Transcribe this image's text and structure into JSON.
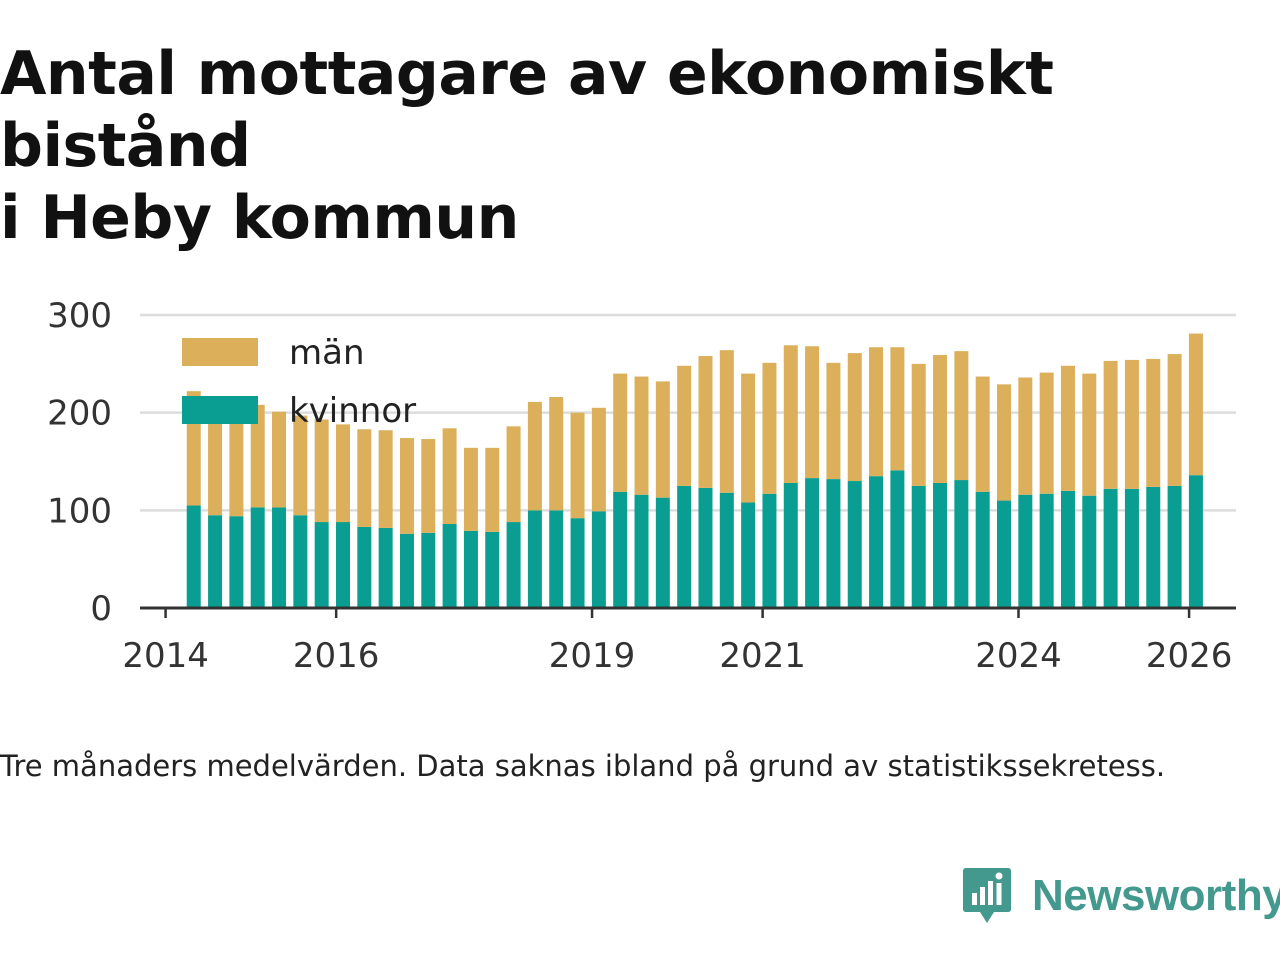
{
  "header": {
    "title_line1": "Antal mottagare av ekonomiskt bistånd",
    "title_line2": "i Heby kommun"
  },
  "footer": {
    "note": "Tre månaders medelvärden. Data saknas ibland på grund av statistikssekretess.",
    "brand": "Newsworthy"
  },
  "colors": {
    "man": "#dcaf5b",
    "kvinnor": "#0a9e93",
    "grid": "#dddddd",
    "axis": "#333333",
    "brand": "#44998f"
  },
  "chart_data": {
    "type": "bar",
    "stacked": true,
    "title": "Antal mottagare av ekonomiskt bistånd i Heby kommun",
    "xlabel": "",
    "ylabel": "",
    "ylim": [
      0,
      300
    ],
    "yticks": [
      0,
      100,
      200,
      300
    ],
    "xticks": [
      "2014",
      "2016",
      "2019",
      "2021",
      "2024",
      "2026"
    ],
    "x_range": [
      2013.7,
      2026.55
    ],
    "grid": true,
    "legend_position": "top-left",
    "x": [
      2014.33,
      2014.58,
      2014.83,
      2015.08,
      2015.33,
      2015.58,
      2015.83,
      2016.08,
      2016.33,
      2016.58,
      2016.83,
      2017.08,
      2017.33,
      2017.58,
      2017.83,
      2018.08,
      2018.33,
      2018.58,
      2018.83,
      2019.08,
      2019.33,
      2019.58,
      2019.83,
      2020.08,
      2020.33,
      2020.58,
      2020.83,
      2021.08,
      2021.33,
      2021.58,
      2021.83,
      2022.08,
      2022.33,
      2022.58,
      2022.83,
      2023.08,
      2023.33,
      2023.58,
      2023.83,
      2024.08,
      2024.33,
      2024.58,
      2024.83,
      2025.08,
      2025.33,
      2025.58,
      2025.83,
      2026.08
    ],
    "series": [
      {
        "name": "kvinnor",
        "values": [
          105,
          95,
          94,
          103,
          103,
          95,
          88,
          88,
          83,
          82,
          76,
          77,
          86,
          79,
          78,
          88,
          100,
          100,
          92,
          99,
          119,
          116,
          113,
          125,
          123,
          118,
          108,
          117,
          128,
          133,
          132,
          130,
          135,
          141,
          125,
          128,
          131,
          119,
          110,
          116,
          117,
          120,
          115,
          122,
          122,
          124,
          125,
          136
        ]
      },
      {
        "name": "män",
        "values": [
          117,
          120,
          115,
          105,
          98,
          102,
          105,
          100,
          100,
          100,
          98,
          96,
          98,
          85,
          86,
          98,
          111,
          116,
          108,
          106,
          121,
          121,
          119,
          123,
          135,
          146,
          132,
          134,
          141,
          135,
          119,
          131,
          132,
          126,
          125,
          131,
          132,
          118,
          119,
          120,
          124,
          128,
          125,
          131,
          132,
          131,
          135,
          145
        ]
      }
    ],
    "legend": [
      "män",
      "kvinnor"
    ]
  }
}
